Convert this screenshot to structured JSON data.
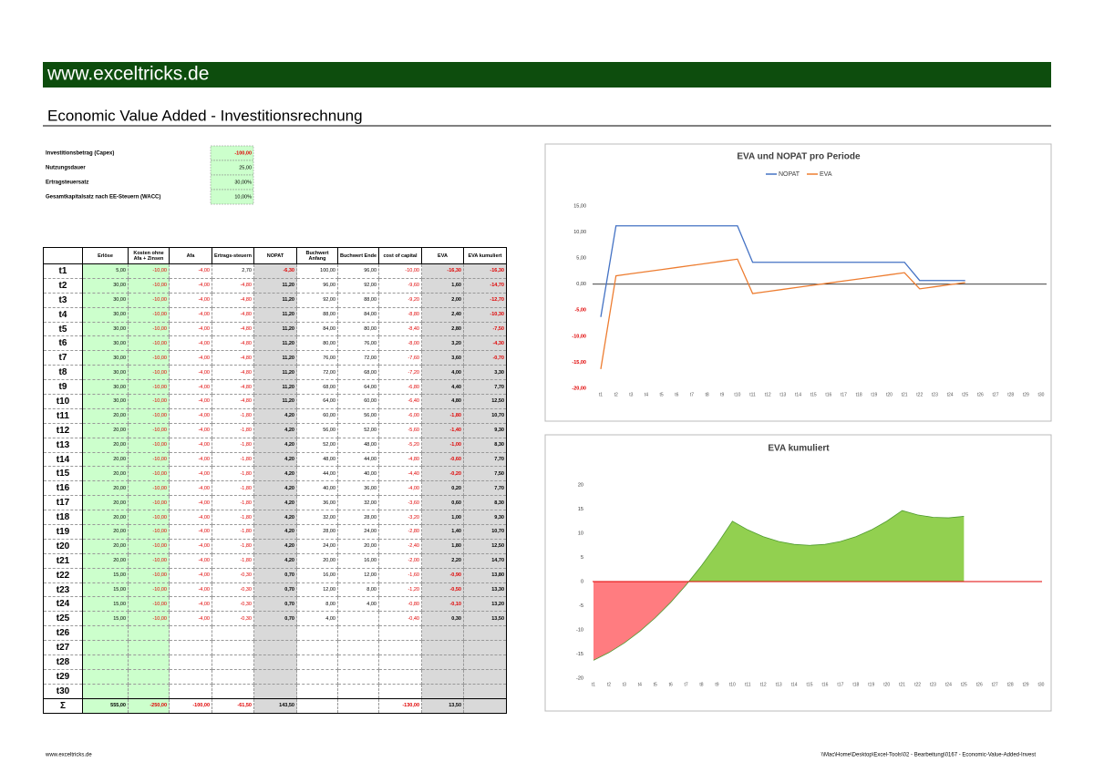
{
  "header": {
    "site": "www.exceltricks.de",
    "title": "Economic Value Added - Investitionsrechnung"
  },
  "inputs": [
    {
      "label": "Investitionsbetrag (Capex)",
      "value": "-100,00"
    },
    {
      "label": "Nutzungsdauer",
      "value": "25,00"
    },
    {
      "label": "Ertragsteuersatz",
      "value": "30,00%"
    },
    {
      "label": "Gesamtkapitalsatz nach EE-Steuern (WACC)",
      "value": "10,00%"
    }
  ],
  "table": {
    "columns": [
      "Erlöse",
      "Kosten ohne Afa + Zinsen",
      "Afa",
      "Ertrags-steuern",
      "NOPAT",
      "Buchwert Anfang",
      "Buchwert Ende",
      "cost of capital",
      "EVA",
      "EVA kumuliert"
    ],
    "rows": [
      [
        "t1",
        "5,00",
        "-10,00",
        "-4,00",
        "2,70",
        "-6,30",
        "100,00",
        "96,00",
        "-10,00",
        "-16,30",
        "-16,30"
      ],
      [
        "t2",
        "30,00",
        "-10,00",
        "-4,00",
        "-4,80",
        "11,20",
        "96,00",
        "92,00",
        "-9,60",
        "1,60",
        "-14,70"
      ],
      [
        "t3",
        "30,00",
        "-10,00",
        "-4,00",
        "-4,80",
        "11,20",
        "92,00",
        "88,00",
        "-9,20",
        "2,00",
        "-12,70"
      ],
      [
        "t4",
        "30,00",
        "-10,00",
        "-4,00",
        "-4,80",
        "11,20",
        "88,00",
        "84,00",
        "-8,80",
        "2,40",
        "-10,30"
      ],
      [
        "t5",
        "30,00",
        "-10,00",
        "-4,00",
        "-4,80",
        "11,20",
        "84,00",
        "80,00",
        "-8,40",
        "2,80",
        "-7,50"
      ],
      [
        "t6",
        "30,00",
        "-10,00",
        "-4,00",
        "-4,80",
        "11,20",
        "80,00",
        "76,00",
        "-8,00",
        "3,20",
        "-4,30"
      ],
      [
        "t7",
        "30,00",
        "-10,00",
        "-4,00",
        "-4,80",
        "11,20",
        "76,00",
        "72,00",
        "-7,60",
        "3,60",
        "-0,70"
      ],
      [
        "t8",
        "30,00",
        "-10,00",
        "-4,00",
        "-4,80",
        "11,20",
        "72,00",
        "68,00",
        "-7,20",
        "4,00",
        "3,30"
      ],
      [
        "t9",
        "30,00",
        "-10,00",
        "-4,00",
        "-4,80",
        "11,20",
        "68,00",
        "64,00",
        "-6,80",
        "4,40",
        "7,70"
      ],
      [
        "t10",
        "30,00",
        "-10,00",
        "-4,00",
        "-4,80",
        "11,20",
        "64,00",
        "60,00",
        "-6,40",
        "4,80",
        "12,50"
      ],
      [
        "t11",
        "20,00",
        "-10,00",
        "-4,00",
        "-1,80",
        "4,20",
        "60,00",
        "56,00",
        "-6,00",
        "-1,80",
        "10,70"
      ],
      [
        "t12",
        "20,00",
        "-10,00",
        "-4,00",
        "-1,80",
        "4,20",
        "56,00",
        "52,00",
        "-5,60",
        "-1,40",
        "9,30"
      ],
      [
        "t13",
        "20,00",
        "-10,00",
        "-4,00",
        "-1,80",
        "4,20",
        "52,00",
        "48,00",
        "-5,20",
        "-1,00",
        "8,30"
      ],
      [
        "t14",
        "20,00",
        "-10,00",
        "-4,00",
        "-1,80",
        "4,20",
        "48,00",
        "44,00",
        "-4,80",
        "-0,60",
        "7,70"
      ],
      [
        "t15",
        "20,00",
        "-10,00",
        "-4,00",
        "-1,80",
        "4,20",
        "44,00",
        "40,00",
        "-4,40",
        "-0,20",
        "7,50"
      ],
      [
        "t16",
        "20,00",
        "-10,00",
        "-4,00",
        "-1,80",
        "4,20",
        "40,00",
        "36,00",
        "-4,00",
        "0,20",
        "7,70"
      ],
      [
        "t17",
        "20,00",
        "-10,00",
        "-4,00",
        "-1,80",
        "4,20",
        "36,00",
        "32,00",
        "-3,60",
        "0,60",
        "8,30"
      ],
      [
        "t18",
        "20,00",
        "-10,00",
        "-4,00",
        "-1,80",
        "4,20",
        "32,00",
        "28,00",
        "-3,20",
        "1,00",
        "9,30"
      ],
      [
        "t19",
        "20,00",
        "-10,00",
        "-4,00",
        "-1,80",
        "4,20",
        "28,00",
        "24,00",
        "-2,80",
        "1,40",
        "10,70"
      ],
      [
        "t20",
        "20,00",
        "-10,00",
        "-4,00",
        "-1,80",
        "4,20",
        "24,00",
        "20,00",
        "-2,40",
        "1,80",
        "12,50"
      ],
      [
        "t21",
        "20,00",
        "-10,00",
        "-4,00",
        "-1,80",
        "4,20",
        "20,00",
        "16,00",
        "-2,00",
        "2,20",
        "14,70"
      ],
      [
        "t22",
        "15,00",
        "-10,00",
        "-4,00",
        "-0,30",
        "0,70",
        "16,00",
        "12,00",
        "-1,60",
        "-0,90",
        "13,80"
      ],
      [
        "t23",
        "15,00",
        "-10,00",
        "-4,00",
        "-0,30",
        "0,70",
        "12,00",
        "8,00",
        "-1,20",
        "-0,50",
        "13,30"
      ],
      [
        "t24",
        "15,00",
        "-10,00",
        "-4,00",
        "-0,30",
        "0,70",
        "8,00",
        "4,00",
        "-0,80",
        "-0,10",
        "13,20"
      ],
      [
        "t25",
        "15,00",
        "-10,00",
        "-4,00",
        "-0,30",
        "0,70",
        "4,00",
        null,
        "-0,40",
        "0,30",
        "13,50"
      ],
      [
        "t26"
      ],
      [
        "t27"
      ],
      [
        "t28"
      ],
      [
        "t29"
      ],
      [
        "t30"
      ]
    ],
    "sum": [
      "Σ",
      "555,00",
      "-250,00",
      "-100,00",
      "-61,50",
      "143,50",
      null,
      null,
      "-130,00",
      "13,50",
      null
    ]
  },
  "chart_data": [
    {
      "type": "line",
      "title": "EVA und NOPAT pro Periode",
      "categories": [
        "t1",
        "t2",
        "t3",
        "t4",
        "t5",
        "t6",
        "t7",
        "t8",
        "t9",
        "t10",
        "t11",
        "t12",
        "t13",
        "t14",
        "t15",
        "t16",
        "t17",
        "t18",
        "t19",
        "t20",
        "t21",
        "t22",
        "t23",
        "t24",
        "t25",
        "t26",
        "t27",
        "t28",
        "t29",
        "t30"
      ],
      "series": [
        {
          "name": "NOPAT",
          "color": "#4472c4",
          "values": [
            -6.3,
            11.2,
            11.2,
            11.2,
            11.2,
            11.2,
            11.2,
            11.2,
            11.2,
            11.2,
            4.2,
            4.2,
            4.2,
            4.2,
            4.2,
            4.2,
            4.2,
            4.2,
            4.2,
            4.2,
            4.2,
            0.7,
            0.7,
            0.7,
            0.7,
            null,
            null,
            null,
            null,
            null
          ]
        },
        {
          "name": "EVA",
          "color": "#ed7d31",
          "values": [
            -16.3,
            1.6,
            2.0,
            2.4,
            2.8,
            3.2,
            3.6,
            4.0,
            4.4,
            4.8,
            -1.8,
            -1.4,
            -1.0,
            -0.6,
            -0.2,
            0.2,
            0.6,
            1.0,
            1.4,
            1.8,
            2.2,
            -0.9,
            -0.5,
            -0.1,
            0.3,
            null,
            null,
            null,
            null,
            null
          ]
        }
      ],
      "ylim": [
        -20,
        15
      ],
      "yticks": [
        {
          "value": -20,
          "label": "-20,00"
        },
        {
          "value": -15,
          "label": "-15,00"
        },
        {
          "value": -10,
          "label": "-10,00"
        },
        {
          "value": -5,
          "label": "-5,00"
        },
        {
          "value": 0,
          "label": "0,00"
        },
        {
          "value": 5,
          "label": "5,00"
        },
        {
          "value": 10,
          "label": "10,00"
        },
        {
          "value": 15,
          "label": "15,00"
        }
      ],
      "legend": "top",
      "grid": false
    },
    {
      "type": "area",
      "title": "EVA kumuliert",
      "categories": [
        "t1",
        "t2",
        "t3",
        "t4",
        "t5",
        "t6",
        "t7",
        "t8",
        "t9",
        "t10",
        "t11",
        "t12",
        "t13",
        "t14",
        "t15",
        "t16",
        "t17",
        "t18",
        "t19",
        "t20",
        "t21",
        "t22",
        "t23",
        "t24",
        "t25",
        "t26",
        "t27",
        "t28",
        "t29",
        "t30"
      ],
      "values": [
        -16.3,
        -14.7,
        -12.7,
        -10.3,
        -7.5,
        -4.3,
        -0.7,
        3.3,
        7.7,
        12.5,
        10.7,
        9.3,
        8.3,
        7.7,
        7.5,
        7.7,
        8.3,
        9.3,
        10.7,
        12.5,
        14.7,
        13.8,
        13.3,
        13.2,
        13.5,
        null,
        null,
        null,
        null,
        null
      ],
      "positive_color": "#92d050",
      "negative_color": "#ff7c80",
      "ylim": [
        -20,
        20
      ],
      "yticks": [
        -20,
        -15,
        -10,
        -5,
        0,
        5,
        10,
        15,
        20
      ],
      "grid": false
    }
  ],
  "footer": {
    "left": "www.exceltricks.de",
    "right": "\\\\Mac\\Home\\Desktop\\Excel-Tools\\02 - Bearbeitung\\0167 - Economic-Value-Added-Invest"
  }
}
